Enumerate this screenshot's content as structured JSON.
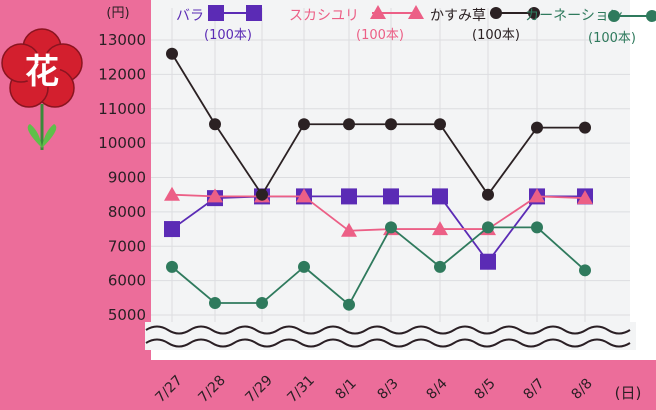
{
  "chart_data": {
    "type": "line",
    "title": "",
    "badge": "花",
    "xlabel": "",
    "ylabel": "",
    "y_unit": "(円)",
    "x_unit": "(日)",
    "categories": [
      "7/27",
      "7/28",
      "7/29",
      "7/31",
      "8/1",
      "8/3",
      "8/4",
      "8/5",
      "8/7",
      "8/8"
    ],
    "yticks": [
      5000,
      6000,
      7000,
      8000,
      9000,
      10000,
      11000,
      12000,
      13000
    ],
    "ylim": [
      5000,
      13000
    ],
    "axis_break": true,
    "grid": true,
    "legend_position": "top",
    "series": [
      {
        "name": "バラ",
        "unit": "(100本)",
        "color": "#5b2bb5",
        "marker": "square",
        "values": [
          7500,
          8400,
          8450,
          8450,
          8450,
          8450,
          8450,
          6550,
          8450,
          8450
        ]
      },
      {
        "name": "スカシユリ",
        "unit": "(100本)",
        "color": "#ec5f86",
        "marker": "triangle",
        "values": [
          8500,
          8450,
          8450,
          8450,
          7450,
          7500,
          7500,
          7500,
          8450,
          8400
        ]
      },
      {
        "name": "かすみ草",
        "unit": "(100本)",
        "color": "#2b2123",
        "marker": "circle",
        "values": [
          12600,
          10550,
          8500,
          10550,
          10550,
          10550,
          10550,
          8500,
          10450,
          10450
        ]
      },
      {
        "name": "カーネーション",
        "unit": "(100本)",
        "color": "#2f7a5d",
        "marker": "circle",
        "values": [
          6400,
          5350,
          5350,
          6400,
          5300,
          7550,
          6400,
          7550,
          7550,
          6300
        ]
      }
    ]
  }
}
